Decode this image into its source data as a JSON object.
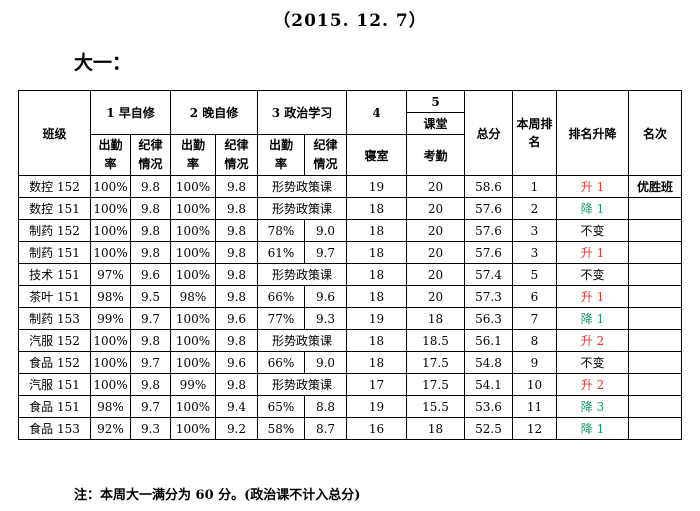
{
  "date": "（2015. 12. 7）",
  "section_title": "大一：",
  "header": {
    "class": "班级",
    "morning": "1 早自修",
    "evening": "2 晚自修",
    "politics": "3 政治学习",
    "dorm_num": "4",
    "dorm": "寝室",
    "class_num": "5",
    "classroom": "课堂",
    "attendance": "考勤",
    "total": "总分",
    "week_rank": "本周排名",
    "rank_change": "排名升降",
    "award": "名次",
    "att_a": "出勤",
    "att_b": "率",
    "dis_a": "纪律",
    "dis_b": "情况"
  },
  "rows": [
    {
      "cls": "数控 152",
      "m_rate": "100%",
      "m_disc": "9.8",
      "e_rate": "100%",
      "e_disc": "9.8",
      "p_rate": "形势政策课",
      "p_disc": "",
      "dorm": "19",
      "attend": "20",
      "total": "58.6",
      "rank": "1",
      "change": "升 1",
      "dir": "up",
      "award": "优胜班"
    },
    {
      "cls": "数控 151",
      "m_rate": "100%",
      "m_disc": "9.8",
      "e_rate": "100%",
      "e_disc": "9.8",
      "p_rate": "形势政策课",
      "p_disc": "",
      "dorm": "18",
      "attend": "20",
      "total": "57.6",
      "rank": "2",
      "change": "降 1",
      "dir": "down",
      "award": ""
    },
    {
      "cls": "制药 152",
      "m_rate": "100%",
      "m_disc": "9.8",
      "e_rate": "100%",
      "e_disc": "9.8",
      "p_rate": "78%",
      "p_disc": "9.0",
      "dorm": "18",
      "attend": "20",
      "total": "57.6",
      "rank": "3",
      "change": "不变",
      "dir": "same",
      "award": ""
    },
    {
      "cls": "制药 151",
      "m_rate": "100%",
      "m_disc": "9.8",
      "e_rate": "100%",
      "e_disc": "9.8",
      "p_rate": "61%",
      "p_disc": "9.7",
      "dorm": "18",
      "attend": "20",
      "total": "57.6",
      "rank": "3",
      "change": "升 1",
      "dir": "up",
      "award": ""
    },
    {
      "cls": "技术 151",
      "m_rate": "97%",
      "m_disc": "9.6",
      "e_rate": "100%",
      "e_disc": "9.8",
      "p_rate": "形势政策课",
      "p_disc": "",
      "dorm": "18",
      "attend": "20",
      "total": "57.4",
      "rank": "5",
      "change": "不变",
      "dir": "same",
      "award": ""
    },
    {
      "cls": "茶叶 151",
      "m_rate": "98%",
      "m_disc": "9.5",
      "e_rate": "98%",
      "e_disc": "9.8",
      "p_rate": "66%",
      "p_disc": "9.6",
      "dorm": "18",
      "attend": "20",
      "total": "57.3",
      "rank": "6",
      "change": "升 1",
      "dir": "up",
      "award": ""
    },
    {
      "cls": "制药 153",
      "m_rate": "99%",
      "m_disc": "9.7",
      "e_rate": "100%",
      "e_disc": "9.6",
      "p_rate": "77%",
      "p_disc": "9.3",
      "dorm": "19",
      "attend": "18",
      "total": "56.3",
      "rank": "7",
      "change": "降 1",
      "dir": "down",
      "award": ""
    },
    {
      "cls": "汽服 152",
      "m_rate": "100%",
      "m_disc": "9.8",
      "e_rate": "100%",
      "e_disc": "9.8",
      "p_rate": "形势政策课",
      "p_disc": "",
      "dorm": "18",
      "attend": "18.5",
      "total": "56.1",
      "rank": "8",
      "change": "升 2",
      "dir": "up",
      "award": ""
    },
    {
      "cls": "食品 152",
      "m_rate": "100%",
      "m_disc": "9.7",
      "e_rate": "100%",
      "e_disc": "9.6",
      "p_rate": "66%",
      "p_disc": "9.0",
      "dorm": "18",
      "attend": "17.5",
      "total": "54.8",
      "rank": "9",
      "change": "不变",
      "dir": "same",
      "award": ""
    },
    {
      "cls": "汽服 151",
      "m_rate": "100%",
      "m_disc": "9.8",
      "e_rate": "99%",
      "e_disc": "9.8",
      "p_rate": "形势政策课",
      "p_disc": "",
      "dorm": "17",
      "attend": "17.5",
      "total": "54.1",
      "rank": "10",
      "change": "升 2",
      "dir": "up",
      "award": ""
    },
    {
      "cls": "食品 151",
      "m_rate": "98%",
      "m_disc": "9.7",
      "e_rate": "100%",
      "e_disc": "9.4",
      "p_rate": "65%",
      "p_disc": "8.8",
      "dorm": "19",
      "attend": "15.5",
      "total": "53.6",
      "rank": "11",
      "change": "降 3",
      "dir": "down",
      "award": ""
    },
    {
      "cls": "食品 153",
      "m_rate": "92%",
      "m_disc": "9.3",
      "e_rate": "100%",
      "e_disc": "9.2",
      "p_rate": "58%",
      "p_disc": "8.7",
      "dorm": "16",
      "attend": "18",
      "total": "52.5",
      "rank": "12",
      "change": "降 1",
      "dir": "down",
      "award": ""
    }
  ],
  "note": "注：本周大一满分为 60 分。(政治课不计入总分)"
}
